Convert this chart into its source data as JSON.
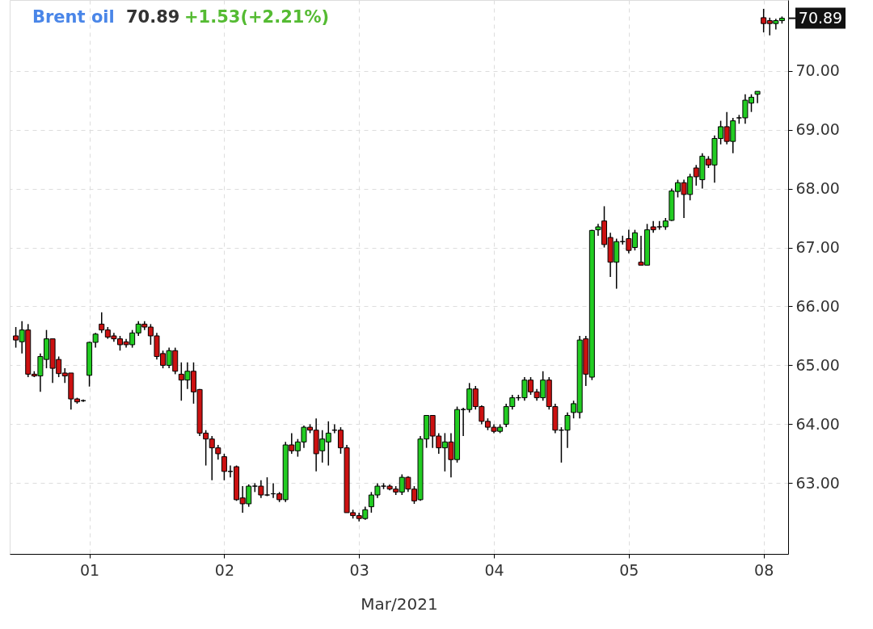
{
  "chart_data": {
    "type": "candlestick",
    "title": "Brent oil",
    "annotations": [
      "70.89",
      "+1.53(+2.21%)",
      "70.89"
    ],
    "xlabel": "Mar/2021",
    "categories": [
      null,
      null,
      null,
      null,
      null,
      null,
      null,
      null,
      null,
      null,
      null,
      null,
      "01",
      null,
      null,
      null,
      null,
      null,
      null,
      null,
      null,
      null,
      null,
      null,
      null,
      null,
      null,
      null,
      null,
      null,
      null,
      null,
      null,
      null,
      "02",
      null,
      null,
      null,
      null,
      null,
      null,
      null,
      null,
      null,
      null,
      null,
      null,
      null,
      null,
      null,
      null,
      null,
      null,
      null,
      null,
      null,
      "03",
      null,
      null,
      null,
      null,
      null,
      null,
      null,
      null,
      null,
      null,
      null,
      null,
      null,
      null,
      null,
      null,
      null,
      null,
      null,
      null,
      null,
      "04",
      null,
      null,
      null,
      null,
      null,
      null,
      null,
      null,
      null,
      null,
      null,
      null,
      null,
      null,
      null,
      null,
      null,
      null,
      null,
      null,
      null,
      "05",
      null,
      null,
      null,
      null,
      null,
      null,
      null,
      null,
      null,
      null,
      null,
      null,
      null,
      null,
      null,
      null,
      null,
      null,
      null,
      null,
      null,
      "08",
      null,
      null,
      null
    ],
    "ohlc": [
      [
        65.5,
        65.65,
        65.3,
        65.43
      ],
      [
        65.4,
        65.75,
        65.2,
        65.6
      ],
      [
        65.6,
        65.7,
        64.8,
        64.85
      ],
      [
        64.85,
        64.9,
        64.8,
        64.82
      ],
      [
        64.82,
        65.2,
        64.55,
        65.15
      ],
      [
        65.1,
        65.6,
        64.95,
        65.45
      ],
      [
        65.45,
        65.45,
        64.7,
        64.95
      ],
      [
        65.1,
        65.15,
        64.8,
        64.86
      ],
      [
        64.87,
        64.95,
        64.7,
        64.82
      ],
      [
        64.87,
        64.87,
        64.25,
        64.43
      ],
      [
        64.43,
        64.45,
        64.35,
        64.38
      ],
      [
        64.4,
        64.42,
        64.38,
        64.4
      ],
      [
        64.83,
        65.4,
        64.64,
        65.39
      ],
      [
        65.39,
        65.55,
        65.3,
        65.53
      ],
      [
        65.7,
        65.9,
        65.55,
        65.6
      ],
      [
        65.6,
        65.65,
        65.45,
        65.48
      ],
      [
        65.5,
        65.55,
        65.4,
        65.45
      ],
      [
        65.45,
        65.5,
        65.25,
        65.35
      ],
      [
        65.4,
        65.45,
        65.3,
        65.35
      ],
      [
        65.35,
        65.6,
        65.3,
        65.55
      ],
      [
        65.55,
        65.75,
        65.5,
        65.7
      ],
      [
        65.7,
        65.75,
        65.6,
        65.65
      ],
      [
        65.65,
        65.7,
        65.35,
        65.5
      ],
      [
        65.5,
        65.55,
        65.1,
        65.15
      ],
      [
        65.2,
        65.25,
        64.95,
        65.0
      ],
      [
        65.0,
        65.3,
        64.95,
        65.25
      ],
      [
        65.25,
        65.3,
        64.85,
        64.9
      ],
      [
        64.85,
        65.05,
        64.4,
        64.75
      ],
      [
        64.75,
        65.05,
        64.6,
        64.9
      ],
      [
        64.9,
        65.05,
        64.35,
        64.55
      ],
      [
        64.59,
        64.6,
        63.8,
        63.85
      ],
      [
        63.85,
        63.9,
        63.3,
        63.75
      ],
      [
        63.75,
        63.8,
        63.05,
        63.6
      ],
      [
        63.6,
        63.65,
        63.4,
        63.5
      ],
      [
        63.45,
        63.5,
        63.05,
        63.2
      ],
      [
        63.2,
        63.3,
        63.1,
        63.2
      ],
      [
        63.28,
        63.3,
        62.7,
        62.72
      ],
      [
        62.75,
        62.95,
        62.5,
        62.65
      ],
      [
        62.65,
        62.98,
        62.6,
        62.95
      ],
      [
        62.95,
        63.0,
        62.85,
        62.95
      ],
      [
        62.95,
        63.05,
        62.75,
        62.8
      ],
      [
        62.8,
        63.1,
        62.78,
        62.8
      ],
      [
        62.82,
        63.0,
        62.75,
        62.82
      ],
      [
        62.82,
        62.85,
        62.68,
        62.72
      ],
      [
        62.72,
        63.7,
        62.68,
        63.65
      ],
      [
        63.65,
        63.85,
        63.5,
        63.55
      ],
      [
        63.55,
        63.75,
        63.45,
        63.7
      ],
      [
        63.7,
        63.98,
        63.6,
        63.95
      ],
      [
        63.95,
        64.0,
        63.85,
        63.9
      ],
      [
        63.9,
        64.1,
        63.2,
        63.5
      ],
      [
        63.55,
        63.9,
        63.35,
        63.75
      ],
      [
        63.7,
        64.05,
        63.3,
        63.85
      ],
      [
        63.9,
        64.0,
        63.85,
        63.9
      ],
      [
        63.9,
        63.95,
        63.5,
        63.6
      ],
      [
        63.6,
        63.65,
        62.5,
        62.5
      ],
      [
        62.5,
        62.55,
        62.4,
        62.45
      ],
      [
        62.45,
        62.5,
        62.35,
        62.4
      ],
      [
        62.4,
        62.6,
        62.38,
        62.55
      ],
      [
        62.6,
        62.85,
        62.5,
        62.8
      ],
      [
        62.8,
        63.0,
        62.75,
        62.95
      ],
      [
        62.95,
        63.0,
        62.9,
        62.95
      ],
      [
        62.95,
        62.98,
        62.88,
        62.9
      ],
      [
        62.9,
        62.95,
        62.8,
        62.85
      ],
      [
        62.85,
        63.15,
        62.8,
        63.1
      ],
      [
        63.1,
        63.12,
        62.85,
        62.9
      ],
      [
        62.9,
        62.95,
        62.65,
        62.7
      ],
      [
        62.72,
        63.8,
        62.7,
        63.75
      ],
      [
        63.75,
        64.15,
        63.6,
        64.15
      ],
      [
        64.15,
        64.15,
        63.6,
        63.8
      ],
      [
        63.8,
        63.85,
        63.5,
        63.6
      ],
      [
        63.6,
        63.85,
        63.2,
        63.7
      ],
      [
        63.7,
        63.85,
        63.1,
        63.4
      ],
      [
        63.4,
        64.3,
        63.35,
        64.25
      ],
      [
        64.25,
        64.28,
        63.8,
        64.25
      ],
      [
        64.25,
        64.7,
        64.2,
        64.6
      ],
      [
        64.6,
        64.65,
        64.25,
        64.3
      ],
      [
        64.3,
        64.32,
        64.0,
        64.05
      ],
      [
        64.05,
        64.1,
        63.9,
        63.95
      ],
      [
        63.95,
        64.0,
        63.85,
        63.88
      ],
      [
        63.88,
        64.0,
        63.85,
        63.95
      ],
      [
        64.0,
        64.35,
        63.95,
        64.3
      ],
      [
        64.3,
        64.5,
        64.25,
        64.45
      ],
      [
        64.45,
        64.5,
        64.4,
        64.45
      ],
      [
        64.45,
        64.8,
        64.4,
        64.75
      ],
      [
        64.75,
        64.8,
        64.5,
        64.55
      ],
      [
        64.55,
        64.6,
        64.4,
        64.45
      ],
      [
        64.45,
        64.9,
        64.4,
        64.75
      ],
      [
        64.75,
        64.8,
        64.25,
        64.3
      ],
      [
        64.3,
        64.35,
        63.85,
        63.9
      ],
      [
        63.9,
        63.95,
        63.35,
        63.9
      ],
      [
        63.9,
        64.2,
        63.6,
        64.15
      ],
      [
        64.2,
        64.4,
        64.1,
        64.35
      ],
      [
        64.2,
        65.5,
        64.1,
        65.43
      ],
      [
        65.45,
        65.5,
        64.65,
        64.85
      ],
      [
        64.8,
        67.3,
        64.75,
        67.29
      ],
      [
        67.3,
        67.4,
        67.2,
        67.35
      ],
      [
        67.45,
        67.7,
        67.0,
        67.05
      ],
      [
        67.17,
        67.25,
        66.5,
        66.75
      ],
      [
        66.75,
        67.15,
        66.3,
        67.1
      ],
      [
        67.1,
        67.2,
        67.05,
        67.1
      ],
      [
        67.15,
        67.3,
        66.9,
        66.95
      ],
      [
        67.0,
        67.3,
        66.95,
        67.25
      ],
      [
        66.75,
        67.2,
        66.7,
        66.7
      ],
      [
        66.7,
        67.4,
        66.7,
        67.3
      ],
      [
        67.35,
        67.45,
        67.25,
        67.3
      ],
      [
        67.35,
        67.45,
        67.3,
        67.35
      ],
      [
        67.35,
        67.5,
        67.3,
        67.45
      ],
      [
        67.46,
        68.0,
        67.45,
        67.96
      ],
      [
        67.95,
        68.15,
        67.85,
        68.1
      ],
      [
        68.1,
        68.15,
        67.5,
        67.9
      ],
      [
        67.9,
        68.25,
        67.8,
        68.2
      ],
      [
        68.35,
        68.4,
        68.05,
        68.2
      ],
      [
        68.15,
        68.6,
        68.0,
        68.55
      ],
      [
        68.5,
        68.55,
        68.35,
        68.4
      ],
      [
        68.4,
        68.9,
        68.1,
        68.85
      ],
      [
        68.85,
        69.15,
        68.75,
        69.05
      ],
      [
        69.05,
        69.3,
        68.75,
        68.8
      ],
      [
        68.8,
        69.2,
        68.6,
        69.15
      ],
      [
        69.2,
        69.25,
        69.1,
        69.2
      ],
      [
        69.2,
        69.6,
        69.1,
        69.5
      ],
      [
        69.45,
        69.6,
        69.3,
        69.55
      ],
      [
        69.6,
        69.65,
        69.45,
        69.65
      ],
      [
        70.9,
        71.05,
        70.65,
        70.8
      ],
      [
        70.85,
        70.9,
        70.6,
        70.8
      ],
      [
        70.8,
        70.88,
        70.7,
        70.85
      ],
      [
        70.85,
        70.92,
        70.8,
        70.89
      ]
    ],
    "ylim": [
      61.8,
      71.2
    ],
    "yticks": [
      {
        "value": 63,
        "label": "63.00"
      },
      {
        "value": 64,
        "label": "64.00"
      },
      {
        "value": 65,
        "label": "65.00"
      },
      {
        "value": 66,
        "label": "66.00"
      },
      {
        "value": 67,
        "label": "67.00"
      },
      {
        "value": 68,
        "label": "68.00"
      },
      {
        "value": 69,
        "label": "69.00"
      },
      {
        "value": 70,
        "label": "70.00"
      }
    ],
    "grid": true
  }
}
